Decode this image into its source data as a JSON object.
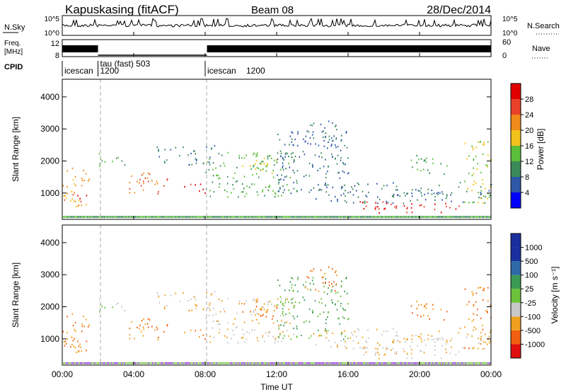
{
  "header": {
    "station": "Kapuskasing (fitACF)",
    "beam": "Beam 08",
    "date": "28/Dec/2014"
  },
  "top_panels": {
    "nsky_label": "N.Sky",
    "nsky_ticks": [
      "10^5",
      "10^0"
    ],
    "nsearch_label": "N.Search",
    "nsearch_ticks": [
      "10^5",
      "10^0"
    ],
    "freq_label": "Freq.",
    "freq_unit": "[MHz]",
    "freq_ticks": [
      "12",
      "8"
    ],
    "nave_label": "Nave",
    "nave_ticks": [
      "60",
      "0"
    ],
    "cpid_label": "CPID"
  },
  "cpid_segments": [
    {
      "name": "icescan",
      "number": "",
      "start_hour": 0.0
    },
    {
      "name": "tau (fast) 503",
      "number": "1200",
      "start_hour": 2.0
    },
    {
      "name": "icescan",
      "number": "1200",
      "start_hour": 8.0
    }
  ],
  "power_panel": {
    "ylabel": "Slant Range [km]",
    "yticks": [
      "4000",
      "3000",
      "2000",
      "1000"
    ],
    "colorbar_label": "Power [dB]",
    "colorbar_ticks": [
      "28",
      "24",
      "20",
      "16",
      "12",
      "8",
      "4"
    ],
    "colors": [
      "#0000ff",
      "#2f57a8",
      "#3a8a5a",
      "#5bbf3a",
      "#f2c21b",
      "#f08a1a",
      "#e8422a",
      "#e00000"
    ]
  },
  "velocity_panel": {
    "ylabel": "Slant Range [km]",
    "yticks": [
      "4000",
      "3000",
      "2000",
      "1000"
    ],
    "colorbar_label": "Velocity [m s⁻¹]",
    "colorbar_ticks": [
      "1000",
      "500",
      "100",
      "25",
      "-25",
      "-100",
      "-500",
      "-1000"
    ],
    "colors": [
      "#1a2f9e",
      "#2f6aa8",
      "#3c9a55",
      "#6cc23a",
      "#c8c8c8",
      "#f0a020",
      "#f06010",
      "#e01010"
    ]
  },
  "x_axis": {
    "label": "Time UT",
    "ticks": [
      "00:00",
      "04:00",
      "08:00",
      "12:00",
      "16:00",
      "20:00",
      "00:00"
    ]
  },
  "chart_data": {
    "type": "heatmap",
    "x_unit": "hours UT",
    "x_range": [
      0,
      24
    ],
    "y_range_km": [
      180,
      4550
    ],
    "scatter_regions": [
      {
        "t0": 0.0,
        "t1": 1.6,
        "r0": 600,
        "r1": 1800,
        "power": 20,
        "velocity": -100
      },
      {
        "t0": 0.0,
        "t1": 1.5,
        "r0": 700,
        "r1": 1000,
        "power": 28,
        "velocity": -100
      },
      {
        "t0": 2.0,
        "t1": 3.5,
        "r0": 1800,
        "r1": 2300,
        "power": 12,
        "velocity": 25
      },
      {
        "t0": 3.5,
        "t1": 6.0,
        "r0": 1000,
        "r1": 1650,
        "power": 24,
        "velocity": -100
      },
      {
        "t0": 6.5,
        "t1": 8.0,
        "r0": 1000,
        "r1": 1300,
        "power": 28,
        "velocity": -100
      },
      {
        "t0": 5.0,
        "t1": 8.5,
        "r0": 1900,
        "r1": 2500,
        "power": 8,
        "velocity": -25
      },
      {
        "t0": 8.0,
        "t1": 13.0,
        "r0": 900,
        "r1": 2300,
        "power": 12,
        "velocity": -25
      },
      {
        "t0": 10.0,
        "t1": 12.0,
        "r0": 1500,
        "r1": 2300,
        "power": 16,
        "velocity": -100
      },
      {
        "t0": 12.0,
        "t1": 16.0,
        "r0": 1000,
        "r1": 3000,
        "power": 8,
        "velocity": 100
      },
      {
        "t0": 13.5,
        "t1": 15.5,
        "r0": 2500,
        "r1": 3300,
        "power": 8,
        "velocity": -100
      },
      {
        "t0": 14.0,
        "t1": 24.0,
        "r0": 700,
        "r1": 1350,
        "power": 8,
        "velocity": -25
      },
      {
        "t0": 16.5,
        "t1": 22.5,
        "r0": 400,
        "r1": 750,
        "power": 28,
        "velocity": -25
      },
      {
        "t0": 19.5,
        "t1": 21.5,
        "r0": 1600,
        "r1": 2200,
        "power": 12,
        "velocity": -100
      },
      {
        "t0": 22.5,
        "t1": 24.0,
        "r0": 700,
        "r1": 2700,
        "power": 16,
        "velocity": -100
      }
    ]
  }
}
